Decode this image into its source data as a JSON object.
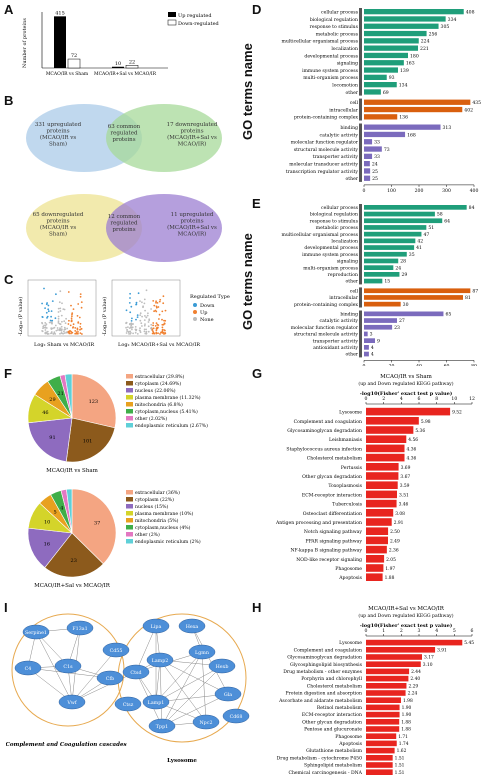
{
  "panels": {
    "A": {
      "letter": "A",
      "ylabel": "Number of proteins",
      "legend": [
        "Up regulated",
        "Down-regulated"
      ],
      "categories": [
        "MCAO/IR vs Sham",
        "MCAO/IR+Sal vs MCAO/IR"
      ],
      "up": [
        415,
        10
      ],
      "down": [
        72,
        22
      ],
      "up_labels": [
        "415",
        "10"
      ],
      "down_labels": [
        "72",
        "22"
      ]
    },
    "B": {
      "letter": "B",
      "venn1": {
        "left": "331 upregulated proteins (MCAO/IR vs Sham)",
        "mid": "63 common regulated proteins",
        "right": "17 downregulated proteins (MCAO/IR+Sal vs MCAO/IR)"
      },
      "venn2": {
        "left": "65 downregulated proteins (MCAO/IR vs Sham)",
        "mid": "12 common regulated proteins",
        "right": "11 upregulated proteins (MCAO/IR+Sal vs MCAO/IR)"
      }
    },
    "C": {
      "letter": "C",
      "xlabel1": "Log₂ Sham vs MCAO/IR",
      "xlabel2": "Log₂ MCAO/IR+Sal vs MCAO/IR",
      "ylabel": "-Log₁₀ (P value)",
      "legend_title": "Regulated Type",
      "legend": [
        "Down",
        "Up",
        "None"
      ]
    },
    "D": {
      "letter": "D",
      "ytitle": "GO terms name",
      "xlabel": "Number of protein (MCAO/IR vs Sham)",
      "bp": [
        {
          "t": "cellular process",
          "v": 408
        },
        {
          "t": "biological regulation",
          "v": 334
        },
        {
          "t": "response to stimulus",
          "v": 305
        },
        {
          "t": "metabolic process",
          "v": 256
        },
        {
          "t": "multicellular organismal process",
          "v": 224
        },
        {
          "t": "localization",
          "v": 221
        },
        {
          "t": "developmental process",
          "v": 180
        },
        {
          "t": "signaling",
          "v": 163
        },
        {
          "t": "immune system process",
          "v": 139
        },
        {
          "t": "multi-organism process",
          "v": 93
        },
        {
          "t": "locomotion",
          "v": 134
        },
        {
          "t": "other",
          "v": 69
        }
      ],
      "cc": [
        {
          "t": "cell",
          "v": 435
        },
        {
          "t": "intracellular",
          "v": 402
        },
        {
          "t": "protein-containing complex",
          "v": 136
        }
      ],
      "mf": [
        {
          "t": "binding",
          "v": 313
        },
        {
          "t": "catalytic activity",
          "v": 168
        },
        {
          "t": "molecular function regulator",
          "v": 33
        },
        {
          "t": "structural molecule activity",
          "v": 73
        },
        {
          "t": "transporter activity",
          "v": 33
        },
        {
          "t": "molecular transducer activity",
          "v": 24
        },
        {
          "t": "transcription regulator activity",
          "v": 25
        },
        {
          "t": "other",
          "v": 25
        }
      ],
      "ticks": [
        "0",
        "100",
        "200",
        "300",
        "400"
      ]
    },
    "E": {
      "letter": "E",
      "ytitle": "GO terms name",
      "xlabel": "Number of protein (MCAO/IR+Sal vs MCAO/IR)",
      "bp": [
        {
          "t": "cellular process",
          "v": 84
        },
        {
          "t": "biological regulation",
          "v": 58
        },
        {
          "t": "response to stimulus",
          "v": 64
        },
        {
          "t": "metabolic process",
          "v": 51
        },
        {
          "t": "multicellular organismal process",
          "v": 47
        },
        {
          "t": "localization",
          "v": 42
        },
        {
          "t": "developmental process",
          "v": 41
        },
        {
          "t": "immune system process",
          "v": 35
        },
        {
          "t": "signaling",
          "v": 28
        },
        {
          "t": "multi-organism process",
          "v": 24
        },
        {
          "t": "reproduction",
          "v": 29
        },
        {
          "t": "other",
          "v": 15
        }
      ],
      "cc": [
        {
          "t": "cell",
          "v": 87
        },
        {
          "t": "intracellular",
          "v": 81
        },
        {
          "t": "protein-containing complex",
          "v": 30
        }
      ],
      "mf": [
        {
          "t": "binding",
          "v": 65
        },
        {
          "t": "catalytic activity",
          "v": 27
        },
        {
          "t": "molecular function regulator",
          "v": 23
        },
        {
          "t": "structural molecule activity",
          "v": 3
        },
        {
          "t": "transporter activity",
          "v": 9
        },
        {
          "t": "antioxidant activity",
          "v": 4
        },
        {
          "t": "other",
          "v": 4
        }
      ],
      "ticks": [
        "0",
        "20",
        "40",
        "60",
        "80"
      ]
    },
    "F": {
      "letter": "F",
      "pie1": {
        "caption": "MCAO/IR vs Sham",
        "slices": [
          {
            "name": "extracellular",
            "pct": "29.8%",
            "v": 123,
            "c": "#f4a582"
          },
          {
            "name": "cytoplasm",
            "pct": "24.69%",
            "v": 101,
            "c": "#8c5a1c"
          },
          {
            "name": "nucleus",
            "pct": "22.06%",
            "v": 91,
            "c": "#8e6bbf"
          },
          {
            "name": "plasma membrane",
            "pct": "11.32%",
            "v": 46,
            "c": "#d4d42a"
          },
          {
            "name": "mitochondria",
            "pct": "6.8%",
            "v": 29,
            "c": "#e8a11f"
          },
          {
            "name": "cytoplasm,nucleus",
            "pct": "5.41%",
            "v": 21,
            "c": "#3fae49"
          },
          {
            "name": "other",
            "pct": "2.02%",
            "v": 8,
            "c": "#e377c2"
          },
          {
            "name": "endoplasmic reticulum",
            "pct": "2.67%",
            "v": 11,
            "c": "#5fd0d8"
          }
        ]
      },
      "pie2": {
        "caption": "MCAO/IR+Sal vs MCAO/IR",
        "slices": [
          {
            "name": "extracellular",
            "pct": "36%",
            "v": 37,
            "c": "#f4a582"
          },
          {
            "name": "cytoplasm",
            "pct": "22%",
            "v": 23,
            "c": "#8c5a1c"
          },
          {
            "name": "nucleus",
            "pct": "15%",
            "v": 16,
            "c": "#8e6bbf"
          },
          {
            "name": "plasma membrane",
            "pct": "10%",
            "v": 10,
            "c": "#d4d42a"
          },
          {
            "name": "mitochondria",
            "pct": "5%",
            "v": 5,
            "c": "#e8a11f"
          },
          {
            "name": "cytoplasm,nucleus",
            "pct": "4%",
            "v": 4,
            "c": "#3fae49"
          },
          {
            "name": "other",
            "pct": "2%",
            "v": 2,
            "c": "#e377c2"
          },
          {
            "name": "endoplasmic reticulum",
            "pct": "2%",
            "v": 2,
            "c": "#5fd0d8"
          }
        ]
      }
    },
    "G": {
      "letter": "G",
      "title": "MCAO/IR vs Sham",
      "subtitle": "(up and Down regulated KEGG pathway)",
      "axis": "-log10(Fisher' exact test p value)",
      "ticks": [
        "0",
        "2",
        "4",
        "6",
        "8",
        "10",
        "12"
      ],
      "max": 12,
      "rows": [
        {
          "t": "Lysosome",
          "v": 9.52
        },
        {
          "t": "Complement and coagulation",
          "v": 5.98
        },
        {
          "t": "Glycosaminoglycan degradation",
          "v": 5.36
        },
        {
          "t": "Leishmaniasis",
          "v": 4.56
        },
        {
          "t": "Staphylococcus aureus infection",
          "v": 4.36
        },
        {
          "t": "Cholesterol metabolism",
          "v": 4.36
        },
        {
          "t": "Pertussis",
          "v": 3.69
        },
        {
          "t": "Other glycan degradation",
          "v": 3.67
        },
        {
          "t": "Toxoplasmosis",
          "v": 3.59
        },
        {
          "t": "ECM-receptor interaction",
          "v": 3.51
        },
        {
          "t": "Tuberculosis",
          "v": 3.46
        },
        {
          "t": "Osteoclast differentiation",
          "v": 3.08
        },
        {
          "t": "Antigen processing and presentation",
          "v": 2.91
        },
        {
          "t": "Notch signaling pathway",
          "v": 2.5
        },
        {
          "t": "PPAR signaling pathway",
          "v": 2.49
        },
        {
          "t": "NF-kappa B signaling pathway",
          "v": 2.36
        },
        {
          "t": "NOD-like receptor signaling",
          "v": 2.05
        },
        {
          "t": "Phagosome",
          "v": 1.97
        },
        {
          "t": "Apoptosis",
          "v": 1.88
        }
      ]
    },
    "H": {
      "letter": "H",
      "title": "MCAO/IR+Sal vs MCAO/IR",
      "subtitle": "(up and Down regulated KEGG pathway)",
      "axis": "-log10(Fisher' exact test p value)",
      "ticks": [
        "0",
        "1",
        "2",
        "3",
        "4",
        "5",
        "6"
      ],
      "max": 6,
      "rows": [
        {
          "t": "Lysosome",
          "v": 5.45
        },
        {
          "t": "Complement and coagulation",
          "v": 3.91
        },
        {
          "t": "Glycosaminoglycan degradation",
          "v": 3.17
        },
        {
          "t": "Glycosphingolipid biosynthesis",
          "v": 3.1
        },
        {
          "t": "Drug metabolism - other enzymes",
          "v": 2.44
        },
        {
          "t": "Porphyrin and chlorophyll",
          "v": 2.4
        },
        {
          "t": "Cholesterol metabolism",
          "v": 2.29
        },
        {
          "t": "Protein digestion and absorption",
          "v": 2.24
        },
        {
          "t": "Ascorbate and aldarate metabolism",
          "v": 1.98
        },
        {
          "t": "Retinol metabolism",
          "v": 1.9
        },
        {
          "t": "ECM-receptor interaction",
          "v": 1.9
        },
        {
          "t": "Other glycan degradation",
          "v": 1.88
        },
        {
          "t": "Pentose and glucuronate",
          "v": 1.88
        },
        {
          "t": "Phagosome",
          "v": 1.71
        },
        {
          "t": "Apoptosis",
          "v": 1.74
        },
        {
          "t": "Glutathione metabolism",
          "v": 1.62
        },
        {
          "t": "Drug metabolism - cytochrome P450",
          "v": 1.51
        },
        {
          "t": "Sphingolipid metabolism",
          "v": 1.51
        },
        {
          "t": "Chemical carcinogenesis - DNA",
          "v": 1.51
        }
      ]
    },
    "I": {
      "letter": "I",
      "left_caption": "Complement and Coagulation cascades",
      "right_caption": "Lysosome",
      "left_nodes": [
        "Serpine1",
        "F13a1",
        "Cd55",
        "C4",
        "C1s",
        "Cfb",
        "Vwf"
      ],
      "right_nodes": [
        "Lipa",
        "Hexa",
        "Lamp2",
        "Lgmn",
        "Hexb",
        "Gla",
        "Ctsd",
        "Lamp1",
        "Npc2",
        "Tpp1",
        "Ctsz",
        "Cd68"
      ]
    }
  },
  "colors": {
    "bp": "#1f9e7a",
    "cc": "#d95f0e",
    "mf": "#7b6bbd",
    "kegg": "#e8251f"
  }
}
